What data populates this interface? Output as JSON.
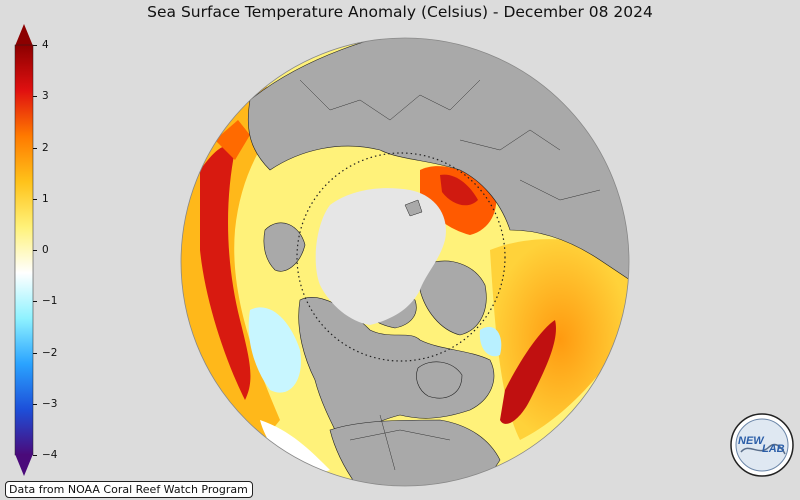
{
  "title": "Sea Surface Temperature Anomaly (Celsius) - December 08 2024",
  "credit": "Data from NOAA Coral Reef Watch Program",
  "colorbar": {
    "min": -4,
    "max": 4,
    "ticks": [
      "4",
      "3",
      "2",
      "1",
      "0",
      "−1",
      "−2",
      "−3",
      "−4"
    ],
    "colors": [
      "#4a0a7a",
      "#1d4fd9",
      "#2aa3ff",
      "#8ff2ff",
      "#ffffff",
      "#fff27a",
      "#ffc21a",
      "#ff7a00",
      "#e01010",
      "#8c0000"
    ]
  },
  "map": {
    "projection": "orthographic",
    "land_color": "#a9a9a9",
    "ice_color": "#e6e6e6",
    "background_color": "#dcdcdc"
  },
  "logo": {
    "text_a": "NEW",
    "text_b": "LAB"
  }
}
